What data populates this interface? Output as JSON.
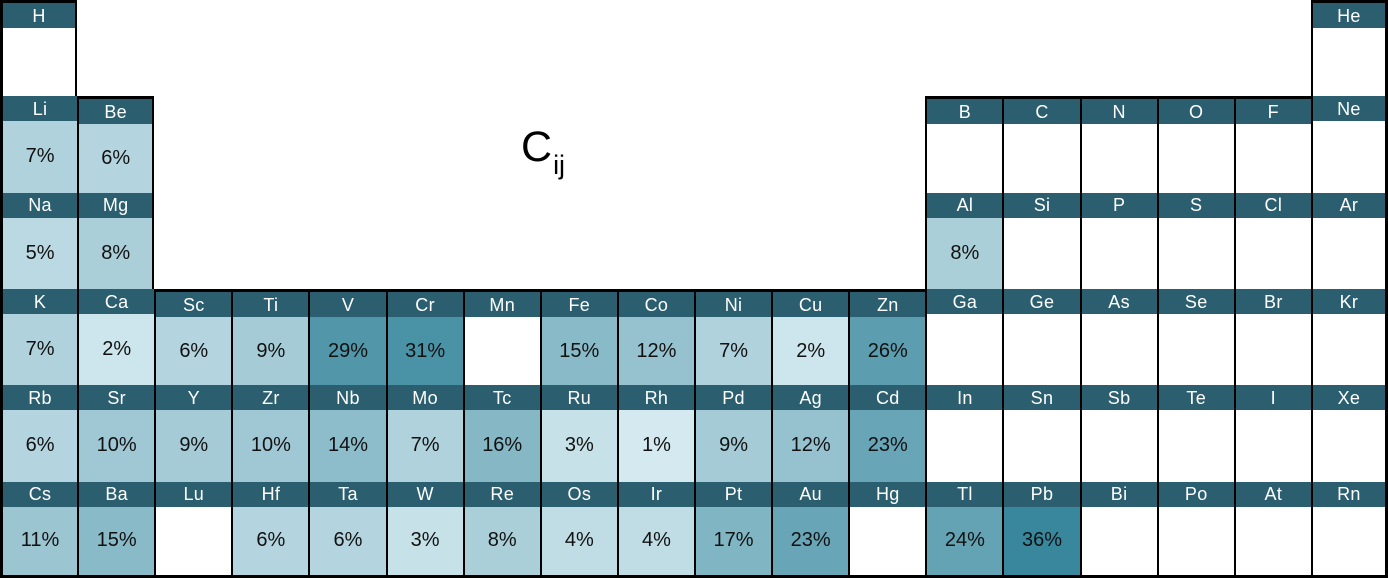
{
  "title": {
    "base": "C",
    "subscript": "ij"
  },
  "colors": {
    "background": "#ffffff",
    "border": "#000000",
    "header_bg": "#2b5f6f",
    "header_text": "#ffffff",
    "value_text": "#111111",
    "empty_cell": "#ffffff",
    "scale_light": "#e0f1f6",
    "scale_dark": "#38879c",
    "scale_exponent": 0.75
  },
  "chart_data": {
    "type": "heatmap",
    "layout": "periodic-table",
    "title": "Cij",
    "unit": "%",
    "value_range": [
      0,
      36
    ],
    "legend_position": "none",
    "rows": [
      [
        {
          "symbol": "H",
          "col": 1,
          "value": null
        },
        {
          "symbol": "He",
          "col": 18,
          "value": null
        }
      ],
      [
        {
          "symbol": "Li",
          "col": 1,
          "value": 7
        },
        {
          "symbol": "Be",
          "col": 2,
          "value": 6
        },
        {
          "symbol": "B",
          "col": 13,
          "value": null
        },
        {
          "symbol": "C",
          "col": 14,
          "value": null
        },
        {
          "symbol": "N",
          "col": 15,
          "value": null
        },
        {
          "symbol": "O",
          "col": 16,
          "value": null
        },
        {
          "symbol": "F",
          "col": 17,
          "value": null
        },
        {
          "symbol": "Ne",
          "col": 18,
          "value": null
        }
      ],
      [
        {
          "symbol": "Na",
          "col": 1,
          "value": 5
        },
        {
          "symbol": "Mg",
          "col": 2,
          "value": 8
        },
        {
          "symbol": "Al",
          "col": 13,
          "value": 8
        },
        {
          "symbol": "Si",
          "col": 14,
          "value": null
        },
        {
          "symbol": "P",
          "col": 15,
          "value": null
        },
        {
          "symbol": "S",
          "col": 16,
          "value": null
        },
        {
          "symbol": "Cl",
          "col": 17,
          "value": null
        },
        {
          "symbol": "Ar",
          "col": 18,
          "value": null
        }
      ],
      [
        {
          "symbol": "K",
          "col": 1,
          "value": 7
        },
        {
          "symbol": "Ca",
          "col": 2,
          "value": 2
        },
        {
          "symbol": "Sc",
          "col": 3,
          "value": 6
        },
        {
          "symbol": "Ti",
          "col": 4,
          "value": 9
        },
        {
          "symbol": "V",
          "col": 5,
          "value": 29
        },
        {
          "symbol": "Cr",
          "col": 6,
          "value": 31
        },
        {
          "symbol": "Mn",
          "col": 7,
          "value": null
        },
        {
          "symbol": "Fe",
          "col": 8,
          "value": 15
        },
        {
          "symbol": "Co",
          "col": 9,
          "value": 12
        },
        {
          "symbol": "Ni",
          "col": 10,
          "value": 7
        },
        {
          "symbol": "Cu",
          "col": 11,
          "value": 2
        },
        {
          "symbol": "Zn",
          "col": 12,
          "value": 26
        },
        {
          "symbol": "Ga",
          "col": 13,
          "value": null
        },
        {
          "symbol": "Ge",
          "col": 14,
          "value": null
        },
        {
          "symbol": "As",
          "col": 15,
          "value": null
        },
        {
          "symbol": "Se",
          "col": 16,
          "value": null
        },
        {
          "symbol": "Br",
          "col": 17,
          "value": null
        },
        {
          "symbol": "Kr",
          "col": 18,
          "value": null
        }
      ],
      [
        {
          "symbol": "Rb",
          "col": 1,
          "value": 6
        },
        {
          "symbol": "Sr",
          "col": 2,
          "value": 10
        },
        {
          "symbol": "Y",
          "col": 3,
          "value": 9
        },
        {
          "symbol": "Zr",
          "col": 4,
          "value": 10
        },
        {
          "symbol": "Nb",
          "col": 5,
          "value": 14
        },
        {
          "symbol": "Mo",
          "col": 6,
          "value": 7
        },
        {
          "symbol": "Tc",
          "col": 7,
          "value": 16
        },
        {
          "symbol": "Ru",
          "col": 8,
          "value": 3
        },
        {
          "symbol": "Rh",
          "col": 9,
          "value": 1
        },
        {
          "symbol": "Pd",
          "col": 10,
          "value": 9
        },
        {
          "symbol": "Ag",
          "col": 11,
          "value": 12
        },
        {
          "symbol": "Cd",
          "col": 12,
          "value": 23
        },
        {
          "symbol": "In",
          "col": 13,
          "value": null
        },
        {
          "symbol": "Sn",
          "col": 14,
          "value": null
        },
        {
          "symbol": "Sb",
          "col": 15,
          "value": null
        },
        {
          "symbol": "Te",
          "col": 16,
          "value": null
        },
        {
          "symbol": "I",
          "col": 17,
          "value": null
        },
        {
          "symbol": "Xe",
          "col": 18,
          "value": null
        }
      ],
      [
        {
          "symbol": "Cs",
          "col": 1,
          "value": 11
        },
        {
          "symbol": "Ba",
          "col": 2,
          "value": 15
        },
        {
          "symbol": "Lu",
          "col": 3,
          "value": null
        },
        {
          "symbol": "Hf",
          "col": 4,
          "value": 6
        },
        {
          "symbol": "Ta",
          "col": 5,
          "value": 6
        },
        {
          "symbol": "W",
          "col": 6,
          "value": 3
        },
        {
          "symbol": "Re",
          "col": 7,
          "value": 8
        },
        {
          "symbol": "Os",
          "col": 8,
          "value": 4
        },
        {
          "symbol": "Ir",
          "col": 9,
          "value": 4
        },
        {
          "symbol": "Pt",
          "col": 10,
          "value": 17
        },
        {
          "symbol": "Au",
          "col": 11,
          "value": 23
        },
        {
          "symbol": "Hg",
          "col": 12,
          "value": null
        },
        {
          "symbol": "Tl",
          "col": 13,
          "value": 24
        },
        {
          "symbol": "Pb",
          "col": 14,
          "value": 36
        },
        {
          "symbol": "Bi",
          "col": 15,
          "value": null
        },
        {
          "symbol": "Po",
          "col": 16,
          "value": null
        },
        {
          "symbol": "At",
          "col": 17,
          "value": null
        },
        {
          "symbol": "Rn",
          "col": 18,
          "value": null
        }
      ]
    ]
  }
}
